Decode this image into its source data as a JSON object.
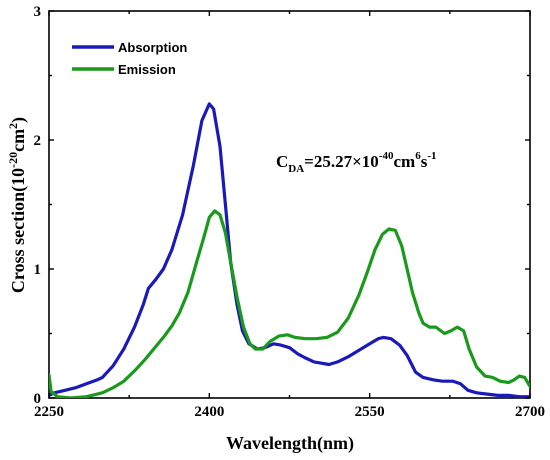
{
  "chart_data": {
    "type": "line",
    "xlabel": "Wavelength(nm)",
    "ylabel_main": "Cross section(10",
    "ylabel_sup1": "-20",
    "ylabel_mid": "cm",
    "ylabel_sup2": "2",
    "ylabel_end": ")",
    "xlim": [
      2250,
      2700
    ],
    "ylim": [
      0,
      3
    ],
    "xticks": [
      2250,
      2400,
      2550,
      2700
    ],
    "yticks": [
      0,
      1,
      2,
      3
    ],
    "legend_position": "top-left",
    "annotation": {
      "c": "C",
      "sub": "DA",
      "text1": "=25.27×10",
      "sup1": "-40",
      "text2": "cm",
      "sup2": "6",
      "text3": "s",
      "sup3": "-1"
    },
    "series": [
      {
        "name": "Absorption",
        "color": "#1a1aba",
        "points": [
          [
            2250,
            0.02
          ],
          [
            2255,
            0.04
          ],
          [
            2265,
            0.06
          ],
          [
            2275,
            0.08
          ],
          [
            2285,
            0.11
          ],
          [
            2295,
            0.14
          ],
          [
            2300,
            0.16
          ],
          [
            2310,
            0.25
          ],
          [
            2320,
            0.38
          ],
          [
            2330,
            0.55
          ],
          [
            2338,
            0.72
          ],
          [
            2343,
            0.85
          ],
          [
            2350,
            0.92
          ],
          [
            2357,
            1.0
          ],
          [
            2365,
            1.15
          ],
          [
            2375,
            1.42
          ],
          [
            2385,
            1.8
          ],
          [
            2393,
            2.15
          ],
          [
            2400,
            2.28
          ],
          [
            2404,
            2.24
          ],
          [
            2410,
            1.95
          ],
          [
            2415,
            1.5
          ],
          [
            2420,
            1.05
          ],
          [
            2426,
            0.72
          ],
          [
            2431,
            0.52
          ],
          [
            2437,
            0.42
          ],
          [
            2445,
            0.38
          ],
          [
            2452,
            0.39
          ],
          [
            2460,
            0.42
          ],
          [
            2467,
            0.41
          ],
          [
            2475,
            0.39
          ],
          [
            2483,
            0.34
          ],
          [
            2490,
            0.31
          ],
          [
            2498,
            0.28
          ],
          [
            2505,
            0.27
          ],
          [
            2512,
            0.26
          ],
          [
            2520,
            0.28
          ],
          [
            2530,
            0.32
          ],
          [
            2540,
            0.37
          ],
          [
            2550,
            0.42
          ],
          [
            2558,
            0.46
          ],
          [
            2563,
            0.47
          ],
          [
            2570,
            0.46
          ],
          [
            2578,
            0.41
          ],
          [
            2585,
            0.33
          ],
          [
            2593,
            0.2
          ],
          [
            2600,
            0.16
          ],
          [
            2610,
            0.14
          ],
          [
            2618,
            0.13
          ],
          [
            2628,
            0.13
          ],
          [
            2635,
            0.11
          ],
          [
            2642,
            0.06
          ],
          [
            2650,
            0.04
          ],
          [
            2660,
            0.03
          ],
          [
            2670,
            0.02
          ],
          [
            2680,
            0.02
          ],
          [
            2690,
            0.01
          ],
          [
            2700,
            0.01
          ]
        ]
      },
      {
        "name": "Emission",
        "color": "#1a9a1a",
        "points": [
          [
            2250,
            0.18
          ],
          [
            2252,
            0.05
          ],
          [
            2258,
            0.01
          ],
          [
            2270,
            0.0
          ],
          [
            2285,
            0.01
          ],
          [
            2300,
            0.04
          ],
          [
            2310,
            0.08
          ],
          [
            2320,
            0.13
          ],
          [
            2330,
            0.21
          ],
          [
            2340,
            0.3
          ],
          [
            2350,
            0.4
          ],
          [
            2358,
            0.48
          ],
          [
            2365,
            0.56
          ],
          [
            2372,
            0.66
          ],
          [
            2380,
            0.82
          ],
          [
            2388,
            1.05
          ],
          [
            2395,
            1.25
          ],
          [
            2400,
            1.4
          ],
          [
            2405,
            1.45
          ],
          [
            2410,
            1.42
          ],
          [
            2415,
            1.28
          ],
          [
            2420,
            1.05
          ],
          [
            2426,
            0.78
          ],
          [
            2432,
            0.55
          ],
          [
            2438,
            0.42
          ],
          [
            2443,
            0.38
          ],
          [
            2450,
            0.38
          ],
          [
            2457,
            0.44
          ],
          [
            2465,
            0.48
          ],
          [
            2473,
            0.49
          ],
          [
            2480,
            0.47
          ],
          [
            2490,
            0.46
          ],
          [
            2500,
            0.46
          ],
          [
            2510,
            0.47
          ],
          [
            2520,
            0.51
          ],
          [
            2530,
            0.62
          ],
          [
            2540,
            0.8
          ],
          [
            2548,
            0.98
          ],
          [
            2555,
            1.15
          ],
          [
            2562,
            1.27
          ],
          [
            2568,
            1.31
          ],
          [
            2574,
            1.3
          ],
          [
            2580,
            1.18
          ],
          [
            2585,
            1.0
          ],
          [
            2590,
            0.82
          ],
          [
            2596,
            0.66
          ],
          [
            2600,
            0.58
          ],
          [
            2606,
            0.55
          ],
          [
            2612,
            0.55
          ],
          [
            2620,
            0.5
          ],
          [
            2626,
            0.52
          ],
          [
            2632,
            0.55
          ],
          [
            2638,
            0.52
          ],
          [
            2643,
            0.38
          ],
          [
            2650,
            0.24
          ],
          [
            2658,
            0.17
          ],
          [
            2665,
            0.16
          ],
          [
            2672,
            0.13
          ],
          [
            2680,
            0.12
          ],
          [
            2685,
            0.14
          ],
          [
            2690,
            0.17
          ],
          [
            2695,
            0.16
          ],
          [
            2700,
            0.09
          ]
        ]
      }
    ]
  }
}
